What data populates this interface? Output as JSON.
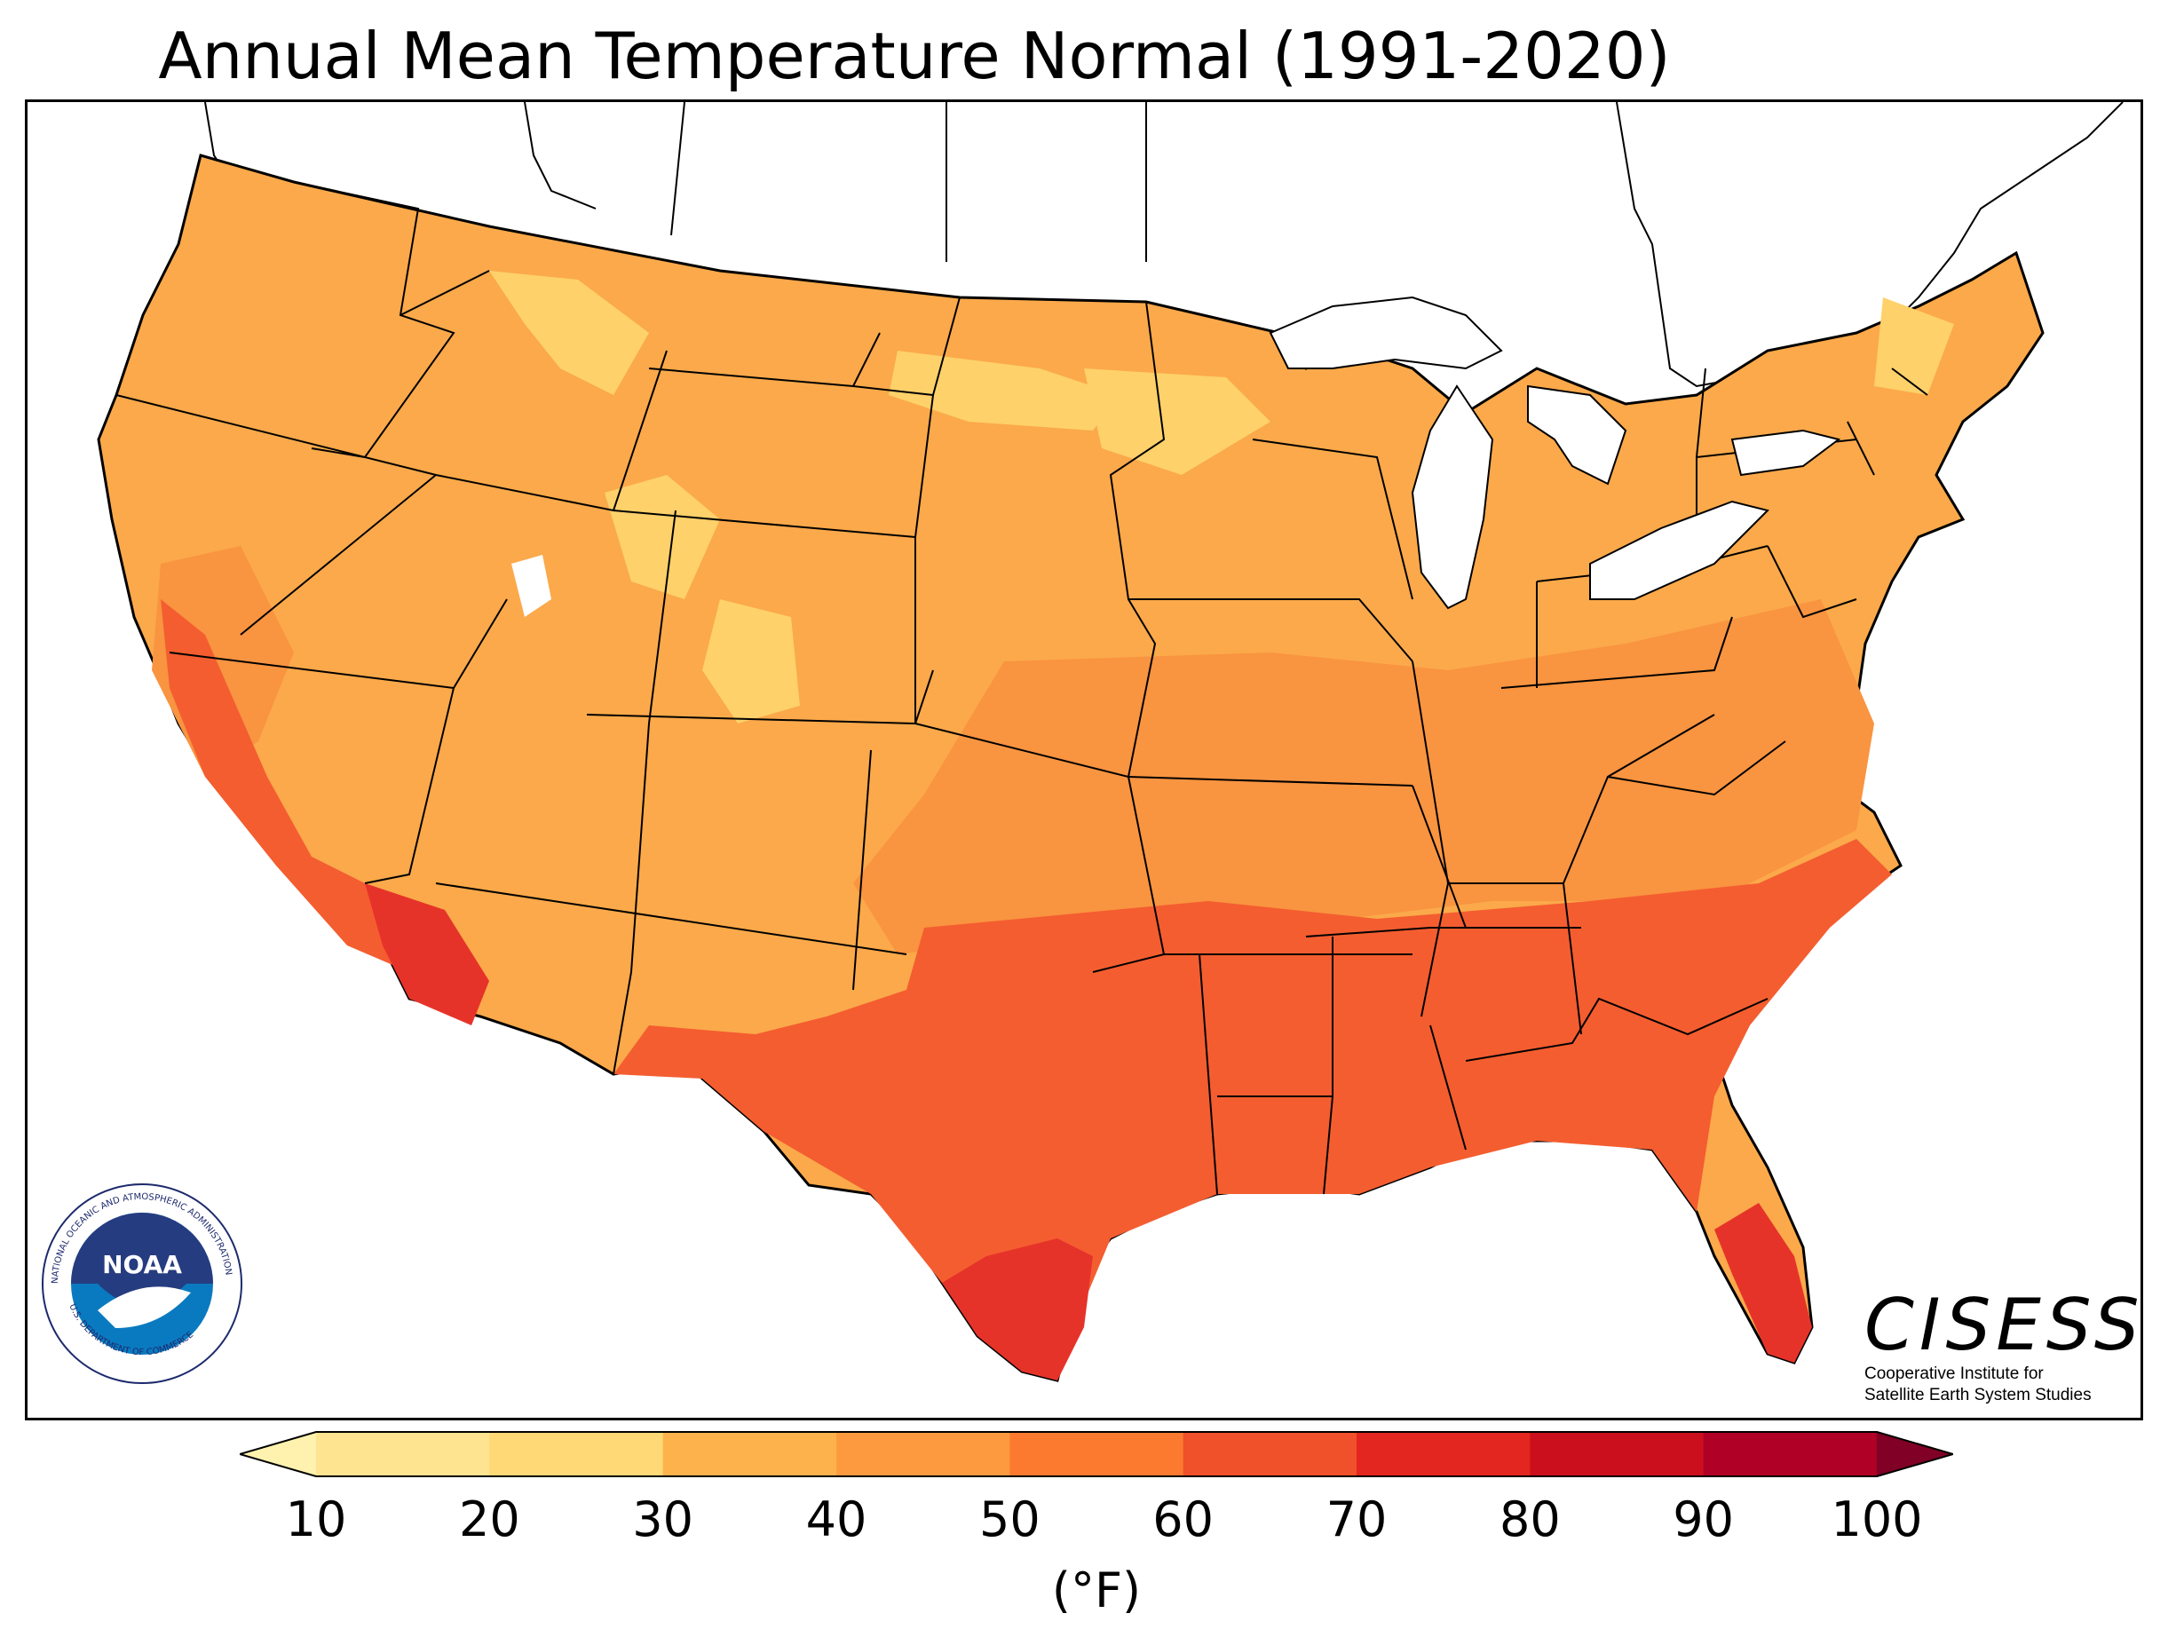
{
  "title": "Annual Mean Temperature Normal (1991-2020)",
  "legend": {
    "ticks": [
      "10",
      "20",
      "30",
      "40",
      "50",
      "60",
      "70",
      "80",
      "90",
      "100"
    ],
    "unit": "(°F)",
    "colors": [
      "#fff2ae",
      "#fee391",
      "#fed976",
      "#feb24c",
      "#fd9a3f",
      "#fc7a30",
      "#f0502a",
      "#e3261f",
      "#cc0f1d",
      "#b00026",
      "#800026"
    ]
  },
  "map_colors": {
    "band_30_40": "#fed16a",
    "band_40_50": "#fba94a",
    "band_50_60": "#f99440",
    "band_60_70": "#f45d30",
    "band_70_80": "#e63329",
    "band_80_90": "#d11f22",
    "water": "#ffffff",
    "border": "#000000"
  },
  "logos": {
    "noaa": {
      "acronym": "NOAA",
      "ring_text": "NATIONAL OCEANIC AND ATMOSPHERIC ADMINISTRATION",
      "dept_text": "U.S. DEPARTMENT OF COMMERCE"
    },
    "cisess": {
      "name": "CISESS",
      "line1": "Cooperative Institute for",
      "line2": "Satellite Earth System Studies"
    }
  }
}
